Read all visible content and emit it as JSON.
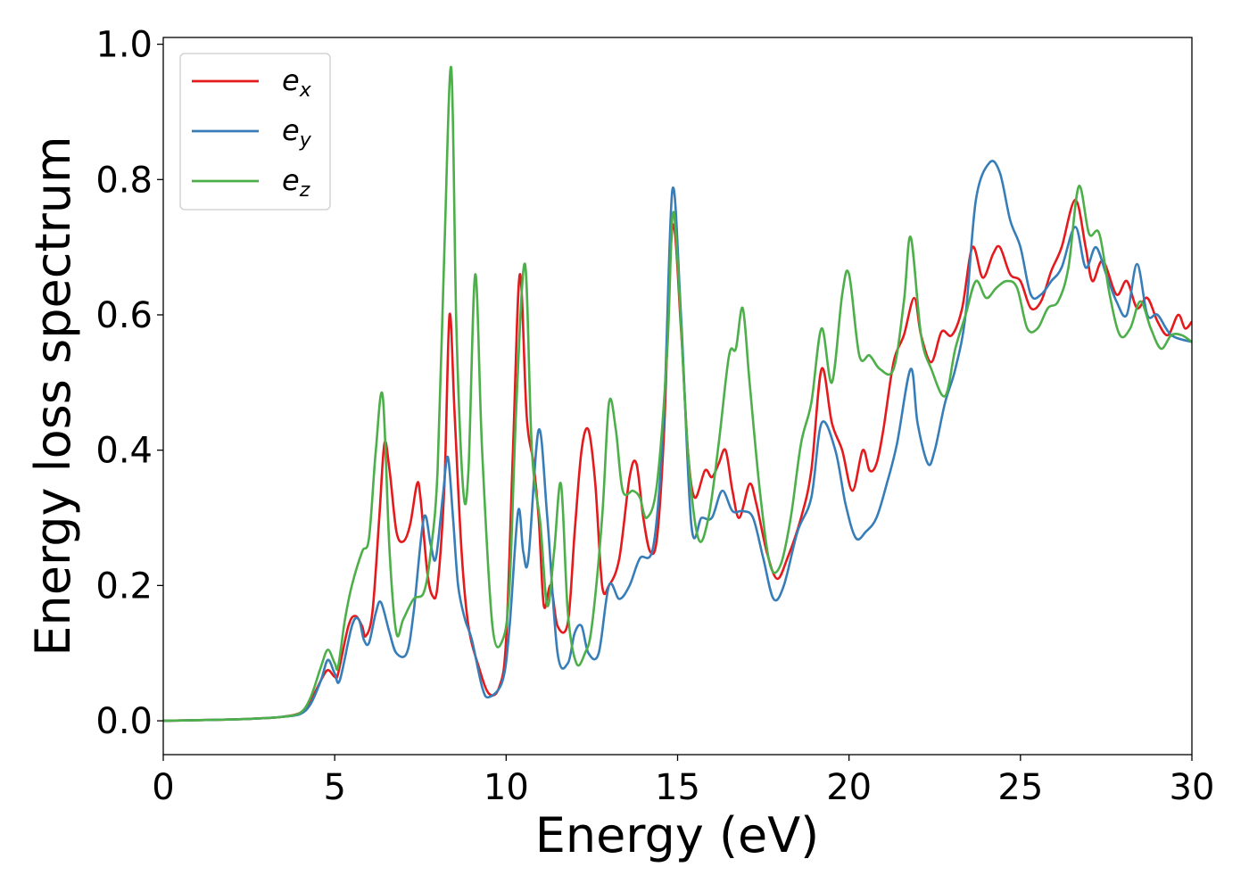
{
  "chart_data": {
    "type": "line",
    "xlabel": "Energy (eV)",
    "ylabel": "Energy loss spectrum",
    "xlim": [
      0,
      30
    ],
    "ylim": [
      -0.05,
      1.01
    ],
    "x_ticks": [
      "0",
      "5",
      "10",
      "15",
      "20",
      "25",
      "30"
    ],
    "y_ticks": [
      "0.0",
      "0.2",
      "0.4",
      "0.6",
      "0.8",
      "1.0"
    ],
    "grid": false,
    "legend_position": "upper-left",
    "series": [
      {
        "name": "e_x",
        "label_base": "e",
        "label_sub": "x",
        "color": "#e41a1c",
        "points": [
          [
            0,
            0
          ],
          [
            2,
            0.002
          ],
          [
            3,
            0.004
          ],
          [
            3.5,
            0.006
          ],
          [
            4,
            0.012
          ],
          [
            4.3,
            0.03
          ],
          [
            4.6,
            0.06
          ],
          [
            4.8,
            0.075
          ],
          [
            5.0,
            0.065
          ],
          [
            5.1,
            0.07
          ],
          [
            5.4,
            0.14
          ],
          [
            5.6,
            0.155
          ],
          [
            5.8,
            0.14
          ],
          [
            5.9,
            0.125
          ],
          [
            6.1,
            0.16
          ],
          [
            6.3,
            0.3
          ],
          [
            6.45,
            0.41
          ],
          [
            6.6,
            0.37
          ],
          [
            6.8,
            0.28
          ],
          [
            7.0,
            0.265
          ],
          [
            7.2,
            0.29
          ],
          [
            7.4,
            0.35
          ],
          [
            7.5,
            0.33
          ],
          [
            7.7,
            0.22
          ],
          [
            7.85,
            0.185
          ],
          [
            8.0,
            0.2
          ],
          [
            8.2,
            0.35
          ],
          [
            8.35,
            0.6
          ],
          [
            8.5,
            0.45
          ],
          [
            8.7,
            0.25
          ],
          [
            8.9,
            0.14
          ],
          [
            9.2,
            0.08
          ],
          [
            9.5,
            0.04
          ],
          [
            9.8,
            0.05
          ],
          [
            10.0,
            0.12
          ],
          [
            10.2,
            0.4
          ],
          [
            10.4,
            0.66
          ],
          [
            10.6,
            0.45
          ],
          [
            10.8,
            0.38
          ],
          [
            10.95,
            0.3
          ],
          [
            11.1,
            0.17
          ],
          [
            11.3,
            0.2
          ],
          [
            11.5,
            0.14
          ],
          [
            11.8,
            0.145
          ],
          [
            12.0,
            0.28
          ],
          [
            12.2,
            0.4
          ],
          [
            12.4,
            0.43
          ],
          [
            12.6,
            0.35
          ],
          [
            12.8,
            0.2
          ],
          [
            13.0,
            0.2
          ],
          [
            13.3,
            0.24
          ],
          [
            13.6,
            0.36
          ],
          [
            13.8,
            0.38
          ],
          [
            14.0,
            0.3
          ],
          [
            14.2,
            0.25
          ],
          [
            14.4,
            0.27
          ],
          [
            14.6,
            0.42
          ],
          [
            14.85,
            0.73
          ],
          [
            15.1,
            0.58
          ],
          [
            15.3,
            0.4
          ],
          [
            15.5,
            0.33
          ],
          [
            15.8,
            0.37
          ],
          [
            16.0,
            0.36
          ],
          [
            16.2,
            0.38
          ],
          [
            16.4,
            0.4
          ],
          [
            16.6,
            0.34
          ],
          [
            16.8,
            0.3
          ],
          [
            17.1,
            0.35
          ],
          [
            17.3,
            0.32
          ],
          [
            17.6,
            0.25
          ],
          [
            17.9,
            0.21
          ],
          [
            18.2,
            0.24
          ],
          [
            18.6,
            0.3
          ],
          [
            18.9,
            0.37
          ],
          [
            19.2,
            0.52
          ],
          [
            19.5,
            0.44
          ],
          [
            19.8,
            0.4
          ],
          [
            20.1,
            0.34
          ],
          [
            20.4,
            0.4
          ],
          [
            20.6,
            0.37
          ],
          [
            20.8,
            0.38
          ],
          [
            21.0,
            0.43
          ],
          [
            21.3,
            0.53
          ],
          [
            21.6,
            0.57
          ],
          [
            21.9,
            0.625
          ],
          [
            22.1,
            0.57
          ],
          [
            22.4,
            0.53
          ],
          [
            22.7,
            0.575
          ],
          [
            23.0,
            0.57
          ],
          [
            23.3,
            0.61
          ],
          [
            23.6,
            0.7
          ],
          [
            23.9,
            0.655
          ],
          [
            24.2,
            0.69
          ],
          [
            24.4,
            0.7
          ],
          [
            24.7,
            0.66
          ],
          [
            25.0,
            0.65
          ],
          [
            25.3,
            0.61
          ],
          [
            25.6,
            0.62
          ],
          [
            25.9,
            0.665
          ],
          [
            26.2,
            0.7
          ],
          [
            26.6,
            0.77
          ],
          [
            26.9,
            0.7
          ],
          [
            27.1,
            0.65
          ],
          [
            27.4,
            0.68
          ],
          [
            27.8,
            0.63
          ],
          [
            28.1,
            0.65
          ],
          [
            28.4,
            0.61
          ],
          [
            28.7,
            0.625
          ],
          [
            29.0,
            0.59
          ],
          [
            29.3,
            0.57
          ],
          [
            29.6,
            0.6
          ],
          [
            29.8,
            0.58
          ],
          [
            30.0,
            0.59
          ]
        ]
      },
      {
        "name": "e_y",
        "label_base": "e",
        "label_sub": "y",
        "color": "#377eb8",
        "points": [
          [
            0,
            0
          ],
          [
            2,
            0.002
          ],
          [
            3,
            0.004
          ],
          [
            3.5,
            0.006
          ],
          [
            4,
            0.01
          ],
          [
            4.3,
            0.025
          ],
          [
            4.6,
            0.06
          ],
          [
            4.8,
            0.09
          ],
          [
            5.0,
            0.07
          ],
          [
            5.15,
            0.06
          ],
          [
            5.5,
            0.14
          ],
          [
            5.7,
            0.15
          ],
          [
            5.85,
            0.12
          ],
          [
            6.0,
            0.115
          ],
          [
            6.2,
            0.16
          ],
          [
            6.35,
            0.175
          ],
          [
            6.6,
            0.13
          ],
          [
            6.8,
            0.1
          ],
          [
            7.1,
            0.1
          ],
          [
            7.3,
            0.16
          ],
          [
            7.6,
            0.3
          ],
          [
            7.8,
            0.26
          ],
          [
            7.95,
            0.24
          ],
          [
            8.15,
            0.33
          ],
          [
            8.3,
            0.39
          ],
          [
            8.45,
            0.3
          ],
          [
            8.6,
            0.2
          ],
          [
            8.8,
            0.15
          ],
          [
            9.0,
            0.12
          ],
          [
            9.3,
            0.05
          ],
          [
            9.5,
            0.035
          ],
          [
            9.9,
            0.06
          ],
          [
            10.1,
            0.14
          ],
          [
            10.35,
            0.31
          ],
          [
            10.5,
            0.25
          ],
          [
            10.65,
            0.24
          ],
          [
            10.95,
            0.43
          ],
          [
            11.2,
            0.3
          ],
          [
            11.5,
            0.1
          ],
          [
            11.8,
            0.085
          ],
          [
            12.0,
            0.13
          ],
          [
            12.2,
            0.14
          ],
          [
            12.4,
            0.1
          ],
          [
            12.7,
            0.1
          ],
          [
            13.0,
            0.2
          ],
          [
            13.3,
            0.18
          ],
          [
            13.6,
            0.2
          ],
          [
            13.9,
            0.24
          ],
          [
            14.3,
            0.26
          ],
          [
            14.6,
            0.45
          ],
          [
            14.85,
            0.785
          ],
          [
            15.1,
            0.6
          ],
          [
            15.4,
            0.29
          ],
          [
            15.7,
            0.3
          ],
          [
            16.0,
            0.3
          ],
          [
            16.3,
            0.34
          ],
          [
            16.6,
            0.31
          ],
          [
            16.9,
            0.31
          ],
          [
            17.2,
            0.3
          ],
          [
            17.5,
            0.24
          ],
          [
            17.8,
            0.18
          ],
          [
            18.1,
            0.2
          ],
          [
            18.5,
            0.28
          ],
          [
            18.9,
            0.33
          ],
          [
            19.2,
            0.44
          ],
          [
            19.6,
            0.4
          ],
          [
            19.9,
            0.32
          ],
          [
            20.2,
            0.27
          ],
          [
            20.5,
            0.28
          ],
          [
            20.8,
            0.3
          ],
          [
            21.1,
            0.35
          ],
          [
            21.4,
            0.41
          ],
          [
            21.8,
            0.52
          ],
          [
            22.0,
            0.44
          ],
          [
            22.3,
            0.38
          ],
          [
            22.5,
            0.4
          ],
          [
            22.8,
            0.47
          ],
          [
            23.1,
            0.52
          ],
          [
            23.4,
            0.6
          ],
          [
            23.7,
            0.77
          ],
          [
            24.1,
            0.825
          ],
          [
            24.4,
            0.81
          ],
          [
            24.7,
            0.74
          ],
          [
            25.0,
            0.7
          ],
          [
            25.3,
            0.63
          ],
          [
            25.6,
            0.63
          ],
          [
            25.9,
            0.65
          ],
          [
            26.2,
            0.67
          ],
          [
            26.6,
            0.73
          ],
          [
            26.9,
            0.67
          ],
          [
            27.2,
            0.7
          ],
          [
            27.5,
            0.66
          ],
          [
            27.8,
            0.62
          ],
          [
            28.1,
            0.6
          ],
          [
            28.4,
            0.675
          ],
          [
            28.7,
            0.6
          ],
          [
            29.0,
            0.6
          ],
          [
            29.4,
            0.57
          ],
          [
            30.0,
            0.56
          ]
        ]
      },
      {
        "name": "e_z",
        "label_base": "e",
        "label_sub": "z",
        "color": "#4daf4a",
        "points": [
          [
            0,
            0
          ],
          [
            2,
            0.002
          ],
          [
            3,
            0.004
          ],
          [
            3.5,
            0.006
          ],
          [
            4,
            0.012
          ],
          [
            4.3,
            0.035
          ],
          [
            4.6,
            0.08
          ],
          [
            4.8,
            0.105
          ],
          [
            5.0,
            0.085
          ],
          [
            5.1,
            0.08
          ],
          [
            5.3,
            0.15
          ],
          [
            5.5,
            0.2
          ],
          [
            5.8,
            0.25
          ],
          [
            6.0,
            0.27
          ],
          [
            6.2,
            0.4
          ],
          [
            6.4,
            0.48
          ],
          [
            6.6,
            0.25
          ],
          [
            6.8,
            0.13
          ],
          [
            7.0,
            0.15
          ],
          [
            7.3,
            0.18
          ],
          [
            7.6,
            0.19
          ],
          [
            7.8,
            0.25
          ],
          [
            8.0,
            0.37
          ],
          [
            8.2,
            0.7
          ],
          [
            8.4,
            0.965
          ],
          [
            8.55,
            0.58
          ],
          [
            8.75,
            0.34
          ],
          [
            8.9,
            0.37
          ],
          [
            9.1,
            0.66
          ],
          [
            9.3,
            0.4
          ],
          [
            9.6,
            0.14
          ],
          [
            9.9,
            0.12
          ],
          [
            10.1,
            0.2
          ],
          [
            10.3,
            0.47
          ],
          [
            10.55,
            0.675
          ],
          [
            10.75,
            0.4
          ],
          [
            11.0,
            0.29
          ],
          [
            11.2,
            0.17
          ],
          [
            11.4,
            0.25
          ],
          [
            11.6,
            0.35
          ],
          [
            11.8,
            0.16
          ],
          [
            12.05,
            0.085
          ],
          [
            12.3,
            0.1
          ],
          [
            12.5,
            0.14
          ],
          [
            12.8,
            0.3
          ],
          [
            13.0,
            0.47
          ],
          [
            13.2,
            0.43
          ],
          [
            13.4,
            0.34
          ],
          [
            13.7,
            0.34
          ],
          [
            13.9,
            0.33
          ],
          [
            14.1,
            0.3
          ],
          [
            14.4,
            0.35
          ],
          [
            14.7,
            0.55
          ],
          [
            14.85,
            0.745
          ],
          [
            15.0,
            0.68
          ],
          [
            15.3,
            0.4
          ],
          [
            15.6,
            0.27
          ],
          [
            15.9,
            0.3
          ],
          [
            16.2,
            0.41
          ],
          [
            16.5,
            0.54
          ],
          [
            16.7,
            0.55
          ],
          [
            16.9,
            0.61
          ],
          [
            17.1,
            0.5
          ],
          [
            17.4,
            0.34
          ],
          [
            17.7,
            0.23
          ],
          [
            18.0,
            0.23
          ],
          [
            18.3,
            0.3
          ],
          [
            18.6,
            0.41
          ],
          [
            18.9,
            0.47
          ],
          [
            19.2,
            0.58
          ],
          [
            19.5,
            0.5
          ],
          [
            19.8,
            0.63
          ],
          [
            20.0,
            0.66
          ],
          [
            20.3,
            0.54
          ],
          [
            20.6,
            0.54
          ],
          [
            20.9,
            0.52
          ],
          [
            21.3,
            0.52
          ],
          [
            21.6,
            0.62
          ],
          [
            21.8,
            0.715
          ],
          [
            22.1,
            0.57
          ],
          [
            22.4,
            0.52
          ],
          [
            22.8,
            0.48
          ],
          [
            23.1,
            0.55
          ],
          [
            23.4,
            0.6
          ],
          [
            23.7,
            0.65
          ],
          [
            24.0,
            0.625
          ],
          [
            24.3,
            0.64
          ],
          [
            24.6,
            0.65
          ],
          [
            24.9,
            0.64
          ],
          [
            25.2,
            0.58
          ],
          [
            25.5,
            0.58
          ],
          [
            25.8,
            0.61
          ],
          [
            26.1,
            0.62
          ],
          [
            26.4,
            0.67
          ],
          [
            26.7,
            0.79
          ],
          [
            27.0,
            0.72
          ],
          [
            27.3,
            0.72
          ],
          [
            27.6,
            0.63
          ],
          [
            27.9,
            0.57
          ],
          [
            28.2,
            0.58
          ],
          [
            28.5,
            0.62
          ],
          [
            28.8,
            0.58
          ],
          [
            29.1,
            0.55
          ],
          [
            29.4,
            0.57
          ],
          [
            29.7,
            0.57
          ],
          [
            30.0,
            0.56
          ]
        ]
      }
    ]
  }
}
